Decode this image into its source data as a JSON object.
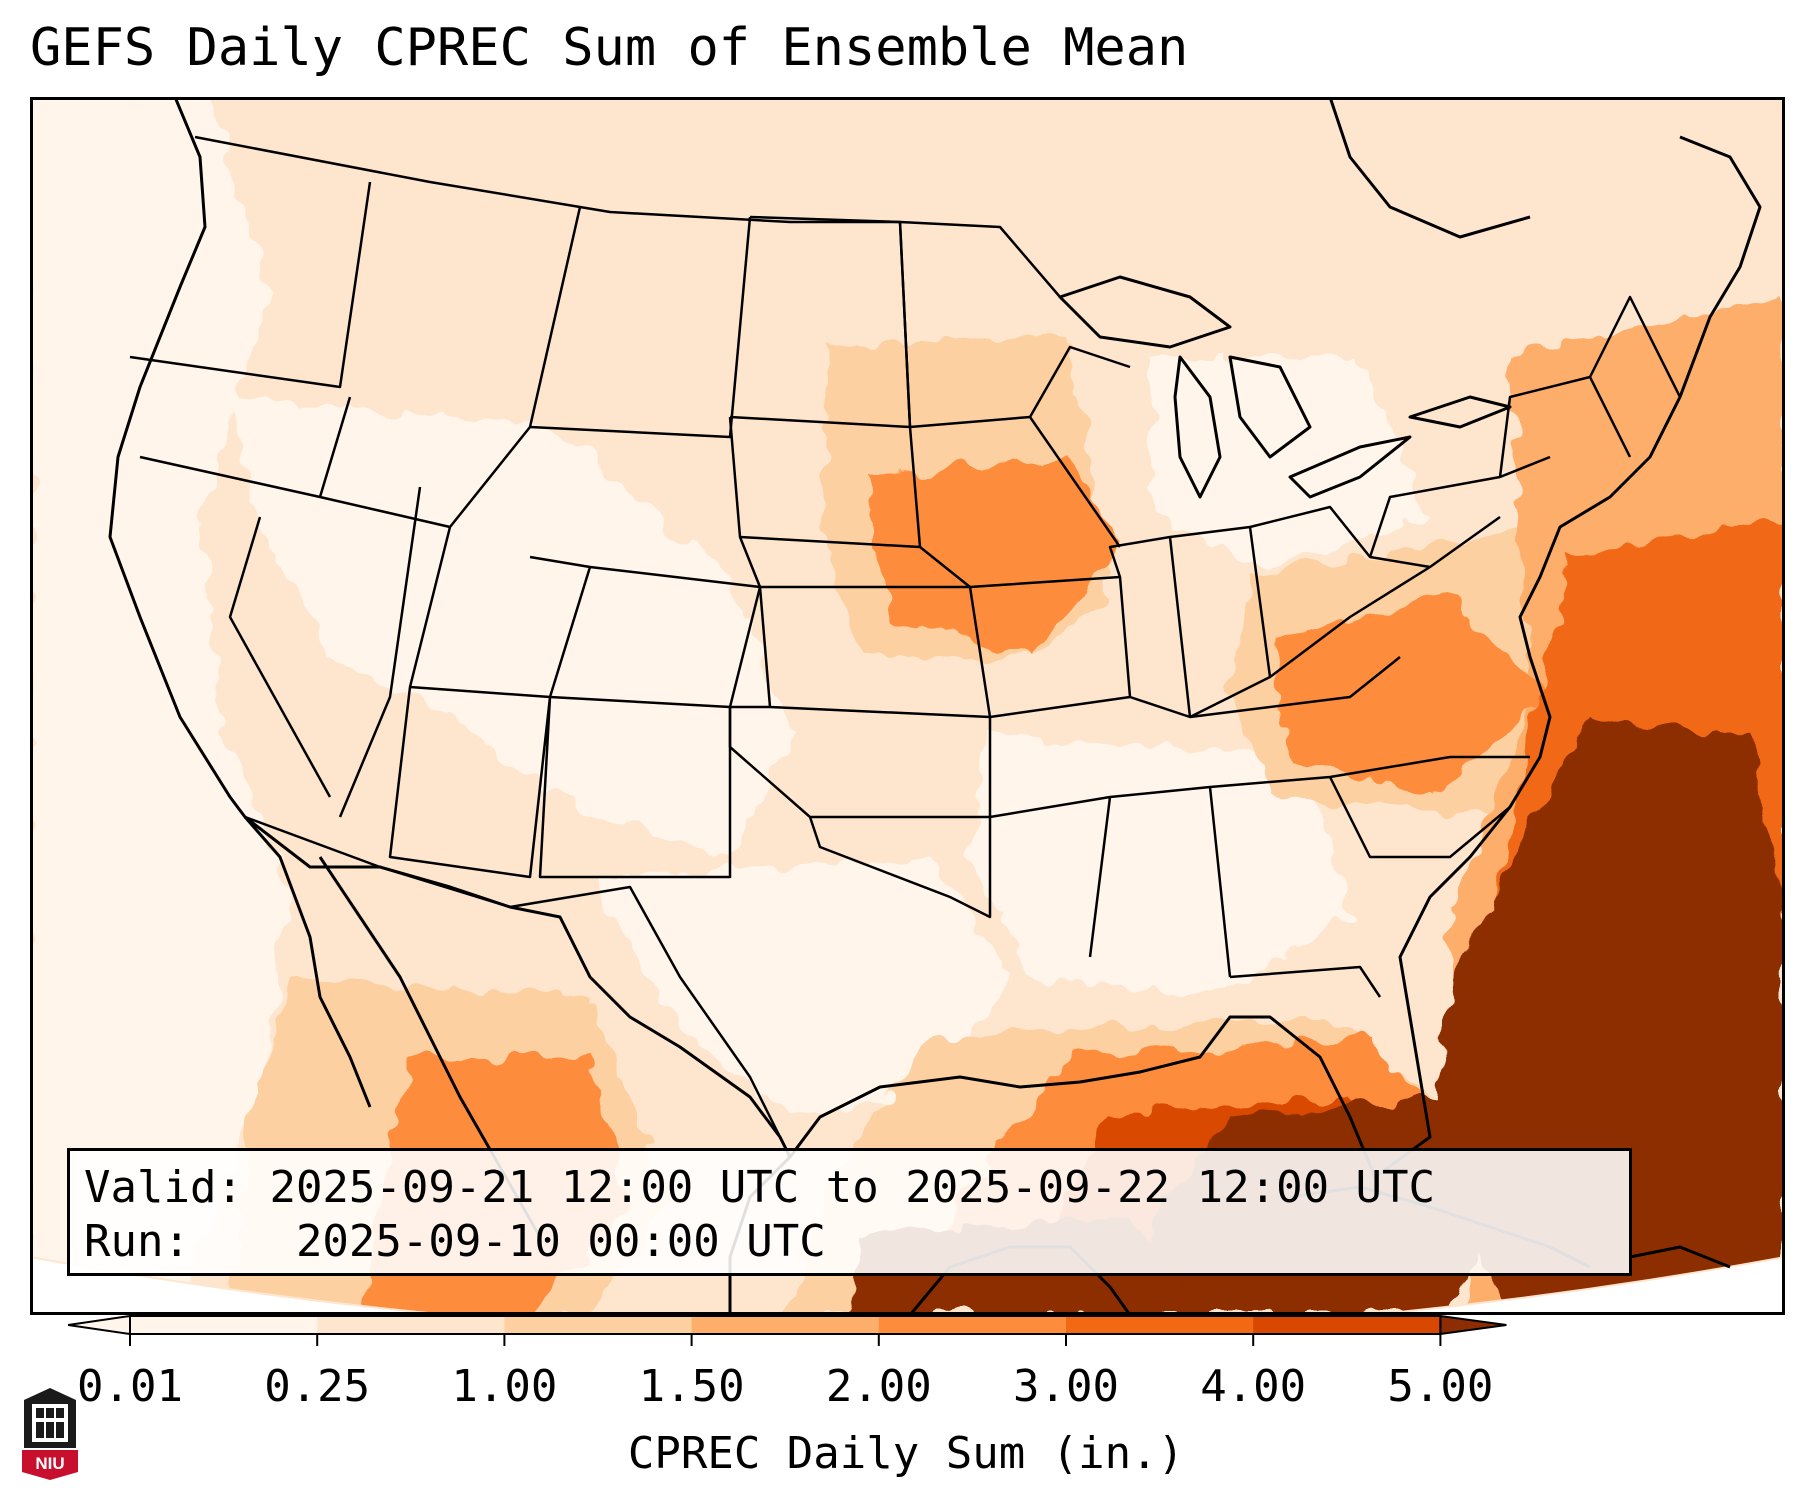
{
  "title": "GEFS Daily CPREC Sum of Ensemble Mean",
  "info": {
    "valid_label": "Valid:",
    "valid_value": "2025-09-21 12:00 UTC to 2025-09-22 12:00 UTC",
    "run_label": "Run:",
    "run_value": "2025-09-10 00:00 UTC"
  },
  "colorbar": {
    "label": "CPREC Daily Sum (in.)",
    "ticks": [
      "0.01",
      "0.25",
      "1.00",
      "1.50",
      "2.00",
      "3.00",
      "4.00",
      "5.00"
    ],
    "colors": [
      "#fff5eb",
      "#fee6ce",
      "#fdd0a2",
      "#fdae6b",
      "#fd8d3c",
      "#f16913",
      "#d94801",
      "#8c2d04"
    ]
  },
  "logo": {
    "text": "NIU",
    "colors": {
      "red": "#c8102e",
      "dark": "#1a1a1a"
    }
  },
  "map": {
    "projection": "Lambert conformal, CONUS",
    "colors": {
      "outline": "#000000",
      "heavy": "#8c2d04"
    }
  }
}
